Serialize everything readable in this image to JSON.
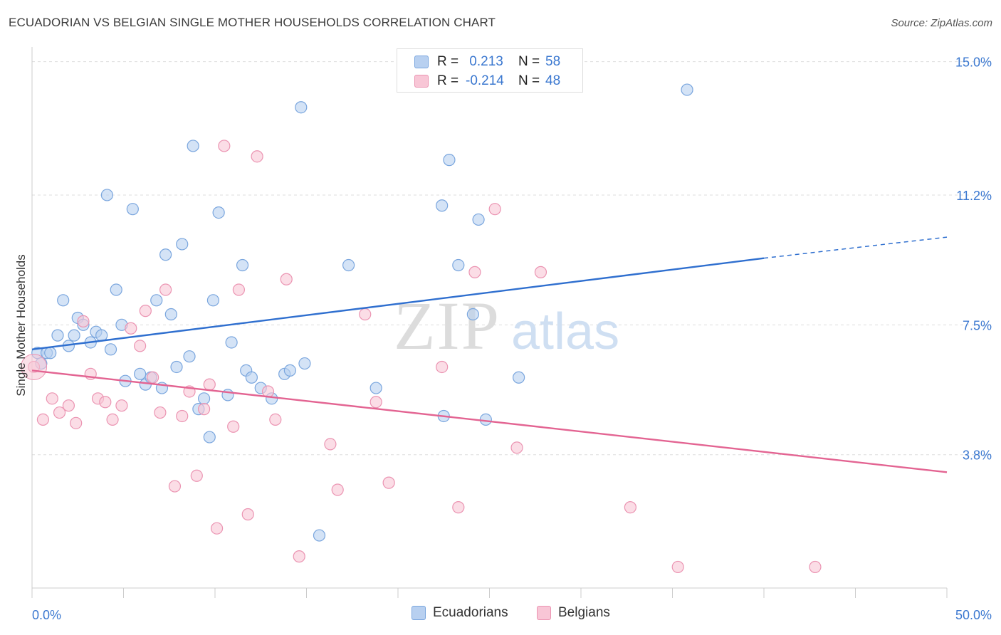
{
  "title": "ECUADORIAN VS BELGIAN SINGLE MOTHER HOUSEHOLDS CORRELATION CHART",
  "source": "Source: ZipAtlas.com",
  "watermark": {
    "zip": "ZIP",
    "atlas": "atlas"
  },
  "legend": {
    "rows": [
      {
        "r_label": "R =",
        "r_value": " 0.213",
        "n_label": "N =",
        "n_value": "58"
      },
      {
        "r_label": "R =",
        "r_value": "-0.214",
        "n_label": "N =",
        "n_value": "48"
      }
    ]
  },
  "bottom_legend": {
    "series1": "Ecuadorians",
    "series2": "Belgians"
  },
  "colors": {
    "ecuadorians_fill": "#b8d0f0",
    "ecuadorians_stroke": "#7aa6de",
    "ecuadorians_line": "#2f6fcf",
    "belgians_fill": "#f8c6d6",
    "belgians_stroke": "#eb94b2",
    "belgians_line": "#e36492",
    "tick_label": "#3b78d0",
    "grid": "#dddddd"
  },
  "chart_data": {
    "type": "scatter",
    "title": "ECUADORIAN VS BELGIAN SINGLE MOTHER HOUSEHOLDS CORRELATION CHART",
    "xlabel": "",
    "ylabel": "Single Mother Households",
    "xlim": [
      0,
      50
    ],
    "ylim": [
      0,
      15.5
    ],
    "x_tick_labels": [
      {
        "value": 0,
        "label": "0.0%"
      },
      {
        "value": 50,
        "label": "50.0%"
      }
    ],
    "y_tick_labels": [
      {
        "value": 3.8,
        "label": "3.8%"
      },
      {
        "value": 7.5,
        "label": "7.5%"
      },
      {
        "value": 11.2,
        "label": "11.2%"
      },
      {
        "value": 15.0,
        "label": "15.0%"
      }
    ],
    "grid": true,
    "legend_position": "top-center",
    "series": [
      {
        "name": "Ecuadorians",
        "r": 0.213,
        "n": 58,
        "trend": {
          "x1": 0,
          "y1": 6.8,
          "x2": 40,
          "y2": 9.4,
          "dashed_to_x": 50,
          "dashed_to_y": 10.0
        },
        "points": [
          [
            0.3,
            6.7
          ],
          [
            0.5,
            6.4
          ],
          [
            0.8,
            6.7
          ],
          [
            1.0,
            6.7
          ],
          [
            1.4,
            7.2
          ],
          [
            1.7,
            8.2
          ],
          [
            2.0,
            6.9
          ],
          [
            2.3,
            7.2
          ],
          [
            2.5,
            7.7
          ],
          [
            2.8,
            7.5
          ],
          [
            3.2,
            7.0
          ],
          [
            3.5,
            7.3
          ],
          [
            3.8,
            7.2
          ],
          [
            4.1,
            11.2
          ],
          [
            4.3,
            6.8
          ],
          [
            4.6,
            8.5
          ],
          [
            4.9,
            7.5
          ],
          [
            5.1,
            5.9
          ],
          [
            5.5,
            10.8
          ],
          [
            5.9,
            6.1
          ],
          [
            6.2,
            5.8
          ],
          [
            6.5,
            6.0
          ],
          [
            6.8,
            8.2
          ],
          [
            7.1,
            5.7
          ],
          [
            7.3,
            9.5
          ],
          [
            7.6,
            7.8
          ],
          [
            7.9,
            6.3
          ],
          [
            8.2,
            9.8
          ],
          [
            8.6,
            6.6
          ],
          [
            8.8,
            12.6
          ],
          [
            9.1,
            5.1
          ],
          [
            9.4,
            5.4
          ],
          [
            9.7,
            4.3
          ],
          [
            9.9,
            8.2
          ],
          [
            10.2,
            10.7
          ],
          [
            10.7,
            5.5
          ],
          [
            10.9,
            7.0
          ],
          [
            11.5,
            9.2
          ],
          [
            11.7,
            6.2
          ],
          [
            12.0,
            6.0
          ],
          [
            12.5,
            5.7
          ],
          [
            13.1,
            5.4
          ],
          [
            13.8,
            6.1
          ],
          [
            14.1,
            6.2
          ],
          [
            14.7,
            13.7
          ],
          [
            14.9,
            6.4
          ],
          [
            15.7,
            1.5
          ],
          [
            17.3,
            9.2
          ],
          [
            18.8,
            5.7
          ],
          [
            22.4,
            10.9
          ],
          [
            22.5,
            4.9
          ],
          [
            22.8,
            12.2
          ],
          [
            23.3,
            9.2
          ],
          [
            24.1,
            7.8
          ],
          [
            24.4,
            10.5
          ],
          [
            24.8,
            4.8
          ],
          [
            26.6,
            6.0
          ],
          [
            35.8,
            14.2
          ]
        ]
      },
      {
        "name": "Belgians",
        "r": -0.214,
        "n": 48,
        "trend": {
          "x1": 0,
          "y1": 6.2,
          "x2": 50,
          "y2": 3.3
        },
        "points": [
          [
            0.1,
            6.3
          ],
          [
            0.6,
            4.8
          ],
          [
            1.1,
            5.4
          ],
          [
            1.5,
            5.0
          ],
          [
            2.0,
            5.2
          ],
          [
            2.4,
            4.7
          ],
          [
            2.8,
            7.6
          ],
          [
            3.2,
            6.1
          ],
          [
            3.6,
            5.4
          ],
          [
            4.0,
            5.3
          ],
          [
            4.4,
            4.8
          ],
          [
            4.9,
            5.2
          ],
          [
            5.4,
            7.4
          ],
          [
            5.9,
            6.9
          ],
          [
            6.2,
            7.9
          ],
          [
            6.6,
            6.0
          ],
          [
            7.0,
            5.0
          ],
          [
            7.3,
            8.5
          ],
          [
            7.8,
            2.9
          ],
          [
            8.2,
            4.9
          ],
          [
            8.6,
            5.6
          ],
          [
            9.0,
            3.2
          ],
          [
            9.4,
            5.1
          ],
          [
            9.7,
            5.8
          ],
          [
            10.1,
            1.7
          ],
          [
            10.5,
            12.6
          ],
          [
            11.0,
            4.6
          ],
          [
            11.3,
            8.5
          ],
          [
            11.8,
            2.1
          ],
          [
            12.3,
            12.3
          ],
          [
            12.9,
            5.6
          ],
          [
            13.3,
            4.8
          ],
          [
            13.9,
            8.8
          ],
          [
            14.6,
            0.9
          ],
          [
            16.3,
            4.1
          ],
          [
            16.7,
            2.8
          ],
          [
            18.2,
            7.8
          ],
          [
            18.8,
            5.3
          ],
          [
            19.5,
            3.0
          ],
          [
            22.4,
            6.3
          ],
          [
            23.3,
            2.3
          ],
          [
            24.2,
            9.0
          ],
          [
            25.3,
            10.8
          ],
          [
            26.5,
            4.0
          ],
          [
            27.8,
            9.0
          ],
          [
            32.7,
            2.3
          ],
          [
            35.3,
            0.6
          ],
          [
            42.8,
            0.6
          ]
        ]
      }
    ]
  }
}
